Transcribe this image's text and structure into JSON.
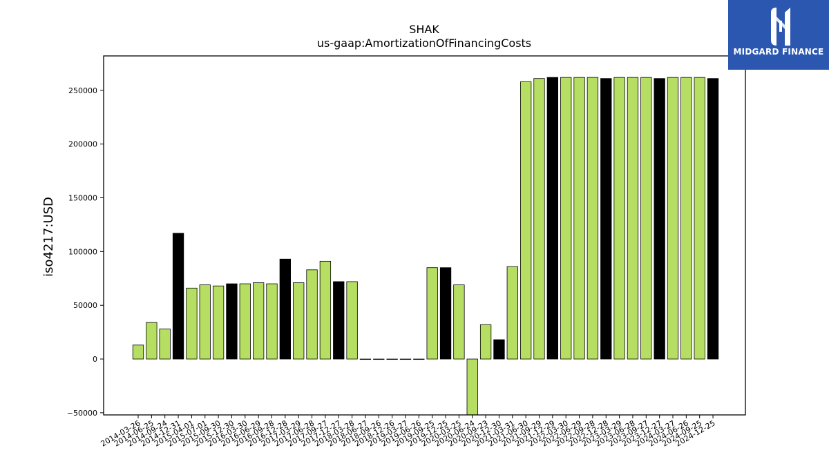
{
  "chart_data": {
    "type": "bar",
    "title": "SHAK",
    "subtitle": "us-gaap:AmortizationOfFinancingCosts",
    "xlabel": "",
    "ylabel": "iso4217:USD",
    "ylim": [
      -52000,
      282000
    ],
    "yticks": [
      -50000,
      0,
      50000,
      100000,
      150000,
      200000,
      250000
    ],
    "grid": false,
    "colors": {
      "normal": "#b5de62",
      "highlight": "#000000",
      "edge": "#000000"
    },
    "categories": [
      "2014-03-26",
      "2014-06-25",
      "2014-09-24",
      "2014-12-31",
      "2015-04-01",
      "2015-07-01",
      "2015-09-30",
      "2015-12-30",
      "2016-03-30",
      "2016-06-29",
      "2016-09-28",
      "2016-12-28",
      "2017-03-29",
      "2017-06-28",
      "2017-09-27",
      "2017-12-27",
      "2018-03-28",
      "2018-06-27",
      "2018-09-26",
      "2018-12-26",
      "2019-03-27",
      "2019-06-26",
      "2019-09-25",
      "2019-12-25",
      "2020-03-25",
      "2020-06-24",
      "2020-09-23",
      "2020-12-30",
      "2021-03-31",
      "2021-06-30",
      "2021-09-29",
      "2021-12-29",
      "2022-03-30",
      "2022-06-29",
      "2022-09-28",
      "2022-12-28",
      "2023-03-29",
      "2023-06-28",
      "2023-09-27",
      "2023-12-27",
      "2024-03-27",
      "2024-06-26",
      "2024-09-25",
      "2024-12-25"
    ],
    "values": [
      13000,
      34000,
      28000,
      117000,
      66000,
      69000,
      68000,
      70000,
      70000,
      71000,
      70000,
      93000,
      71000,
      83000,
      91000,
      72000,
      72000,
      0,
      0,
      0,
      0,
      0,
      85000,
      85000,
      69000,
      -52000,
      32000,
      18000,
      86000,
      258000,
      261000,
      262000,
      262000,
      262000,
      262000,
      261000,
      262000,
      262000,
      262000,
      261000,
      262000,
      262000,
      262000,
      261000
    ],
    "highlight": [
      false,
      false,
      false,
      true,
      false,
      false,
      false,
      true,
      false,
      false,
      false,
      true,
      false,
      false,
      false,
      true,
      false,
      false,
      false,
      false,
      false,
      false,
      false,
      true,
      false,
      false,
      false,
      true,
      false,
      false,
      false,
      true,
      false,
      false,
      false,
      true,
      false,
      false,
      false,
      true,
      false,
      false,
      false,
      true
    ]
  },
  "logo": {
    "text": "MIDGARD FINANCE",
    "mark": "M-bars-icon"
  }
}
